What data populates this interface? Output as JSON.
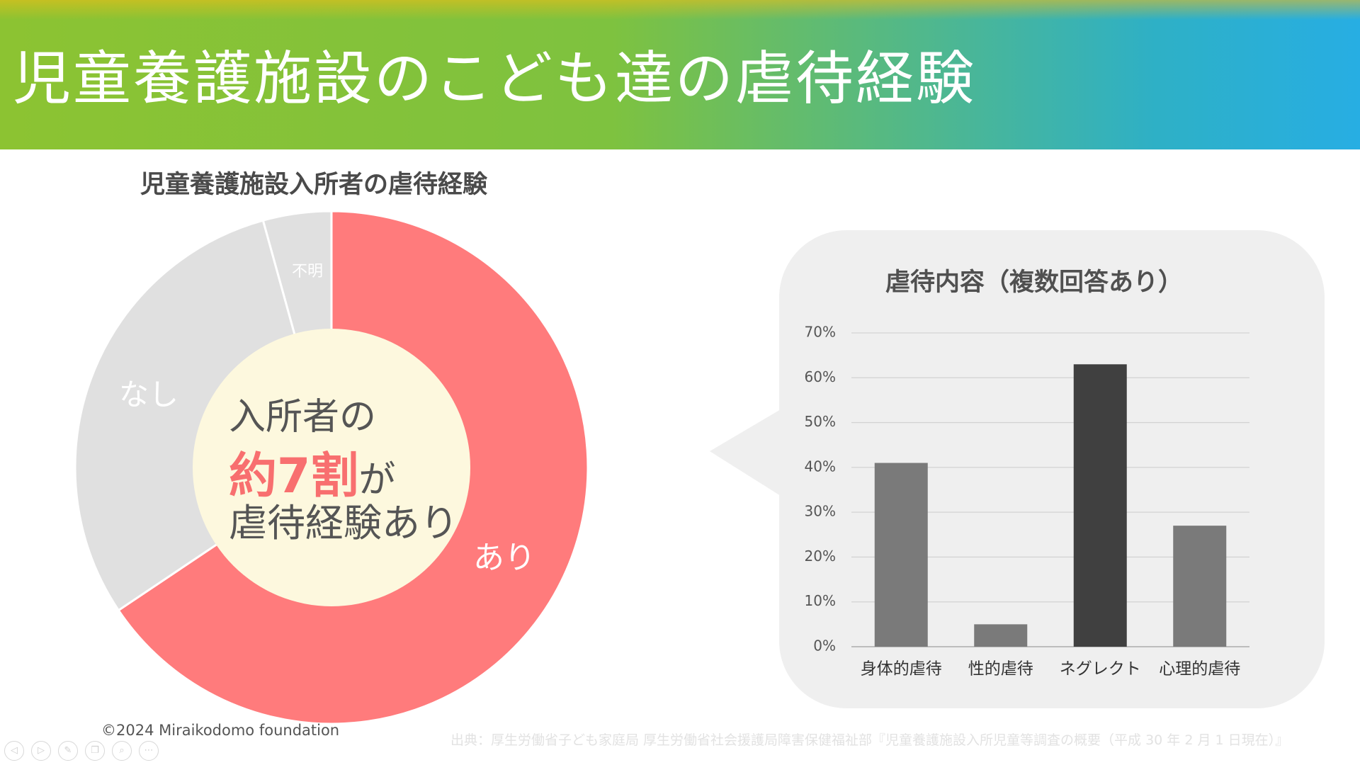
{
  "slide_title": "児童養護施設のこども達の虐待経験",
  "donut": {
    "title": "児童養護施設入所者の虐待経験",
    "center": {
      "line1": "入所者の",
      "highlight": "約7割",
      "line2_suffix": "が",
      "line3": "虐待経験あり"
    },
    "colors": {
      "ari": "#ff7b7c",
      "nashi": "#e0e0e0",
      "fumei": "#e0e0e0",
      "center_fill": "#fdf8de"
    }
  },
  "chart_data": [
    {
      "type": "pie",
      "title": "児童養護施設入所者の虐待経験",
      "categories": [
        "あり",
        "なし",
        "不明"
      ],
      "values": [
        65.6,
        30.1,
        4.3
      ],
      "unit": "%"
    },
    {
      "type": "bar",
      "title": "虐待内容（複数回答あり）",
      "categories": [
        "身体的虐待",
        "性的虐待",
        "ネグレクト",
        "心理的虐待"
      ],
      "values": [
        41,
        5,
        63,
        27
      ],
      "ylim": [
        0,
        70
      ],
      "ytick_values": [
        0,
        10,
        20,
        30,
        40,
        50,
        60,
        70
      ],
      "yticks": [
        "0%",
        "10%",
        "20%",
        "30%",
        "40%",
        "50%",
        "60%",
        "70%"
      ],
      "grid": true,
      "bar_colors": [
        "#7a7a7a",
        "#7a7a7a",
        "#404040",
        "#7a7a7a"
      ]
    }
  ],
  "footer": {
    "copyright": "©2024 Miraikodomo foundation",
    "source": "出典：厚生労働省子ども家庭局 厚生労働省社会援護局障害保健福祉部『児童養護施設入所児童等調査の概要（平成 30 年 2 月 1 日現在）』"
  },
  "toolbar": {
    "buttons": [
      {
        "icon": "prev-icon",
        "glyph": "◁"
      },
      {
        "icon": "next-icon",
        "glyph": "▷"
      },
      {
        "icon": "pen-icon",
        "glyph": "✎"
      },
      {
        "icon": "slides-icon",
        "glyph": "❐"
      },
      {
        "icon": "zoom-icon",
        "glyph": "⌕"
      },
      {
        "icon": "more-icon",
        "glyph": "⋯"
      }
    ]
  }
}
